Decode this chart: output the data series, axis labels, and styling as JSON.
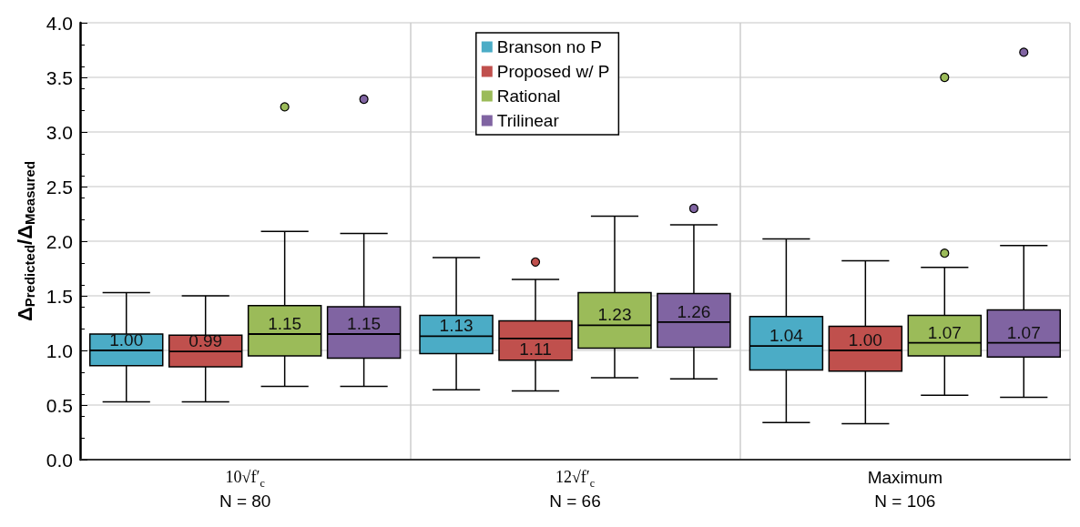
{
  "chart_data": {
    "type": "box",
    "ylabel": "Δ$_{Predicted}$/Δ$_{Measured}$",
    "categories": [
      "10√f′$_{c}$\nN = 80",
      "12√f′$_{c}$\nN = 66",
      "Maximum\nN = 106"
    ],
    "ylim": [
      0,
      4
    ],
    "yticks": [
      {
        "value": 0,
        "label": "0.0"
      },
      0.5,
      {
        "value": 1,
        "label": "1.0"
      },
      1.5,
      {
        "value": 2,
        "label": "2.0"
      },
      2.5,
      {
        "value": 3,
        "label": "3.0"
      },
      3.5,
      {
        "value": 4,
        "label": "4.0"
      }
    ],
    "grid": true,
    "legend": "top",
    "series": [
      {
        "name": "Branson no P",
        "color": "#4bacc6",
        "value_labels": [
          "1.00",
          "1.13",
          "1.04"
        ],
        "boxes": [
          {
            "low": 0.53,
            "q1": 0.86,
            "median": 1.0,
            "q3": 1.15,
            "high": 1.53
          },
          {
            "low": 0.64,
            "q1": 0.97,
            "median": 1.13,
            "q3": 1.32,
            "high": 1.85
          },
          {
            "low": 0.34,
            "q1": 0.82,
            "median": 1.04,
            "q3": 1.31,
            "high": 2.02
          }
        ]
      },
      {
        "name": "Proposed w/ P",
        "color": "#c0504d",
        "value_labels": [
          "0.99",
          "1.11",
          "1.00"
        ],
        "boxes": [
          {
            "low": 0.53,
            "q1": 0.85,
            "median": 0.99,
            "q3": 1.14,
            "high": 1.5
          },
          {
            "low": 0.63,
            "q1": 0.91,
            "median": 1.11,
            "q3": 1.27,
            "high": 1.65,
            "outliers": [
              1.81
            ]
          },
          {
            "low": 0.33,
            "q1": 0.81,
            "median": 1.0,
            "q3": 1.22,
            "high": 1.82
          }
        ]
      },
      {
        "name": "Rational",
        "color": "#9bbb59",
        "value_labels": [
          "1.15",
          "1.23",
          "1.07"
        ],
        "boxes": [
          {
            "low": 0.67,
            "q1": 0.95,
            "median": 1.15,
            "q3": 1.41,
            "high": 2.09,
            "outliers": [
              3.23
            ]
          },
          {
            "low": 0.75,
            "q1": 1.02,
            "median": 1.23,
            "q3": 1.53,
            "high": 2.23
          },
          {
            "low": 0.59,
            "q1": 0.95,
            "median": 1.07,
            "q3": 1.32,
            "high": 1.76,
            "outliers": [
              1.89,
              3.5
            ]
          }
        ]
      },
      {
        "name": "Trilinear",
        "color": "#8064a2",
        "value_labels": [
          "1.15",
          "1.26",
          "1.07"
        ],
        "boxes": [
          {
            "low": 0.67,
            "q1": 0.93,
            "median": 1.15,
            "q3": 1.4,
            "high": 2.07,
            "outliers": [
              3.3
            ]
          },
          {
            "low": 0.74,
            "q1": 1.03,
            "median": 1.26,
            "q3": 1.52,
            "high": 2.15,
            "outliers": [
              2.3
            ]
          },
          {
            "low": 0.57,
            "q1": 0.94,
            "median": 1.07,
            "q3": 1.37,
            "high": 1.96,
            "outliers": [
              3.73
            ]
          }
        ]
      }
    ]
  }
}
